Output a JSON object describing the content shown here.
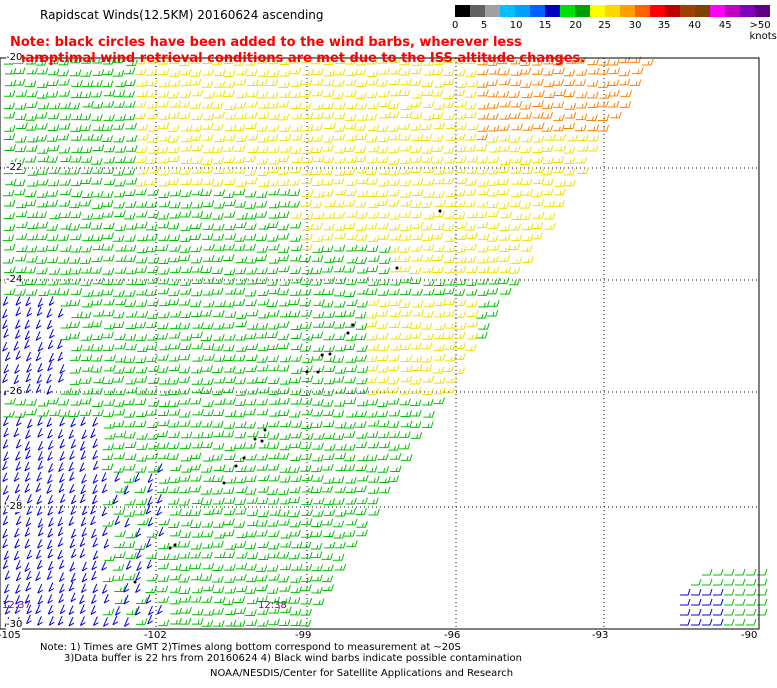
{
  "title": "Rapidscat Winds(12.5KM) 20160624 ascending",
  "note_line1": "Note: black circles have been added to the wind barbs, wherever less than",
  "note_line2": "optimal wind retrieval conditions are met due to the ISS altitude changes.",
  "colorbar": {
    "colors": [
      "#000000",
      "#606060",
      "#a0a0a0",
      "#00c0ff",
      "#00a0ff",
      "#0060ff",
      "#0000c0",
      "#00e000",
      "#00a000",
      "#ffff00",
      "#ffd700",
      "#ffa000",
      "#ff6000",
      "#ff0000",
      "#c00000",
      "#a04000",
      "#804000",
      "#ff00ff",
      "#c000c0",
      "#8000c0",
      "#600080"
    ],
    "labels": [
      "0",
      "5",
      "10",
      "15",
      "20",
      "25",
      "30",
      "35",
      "40",
      "45",
      ">50 knots"
    ],
    "label_positions": [
      0,
      1.7,
      3.4,
      5.1,
      6.9,
      8.6,
      10.4,
      12.1,
      13.9,
      15.7,
      17.5
    ]
  },
  "lat_labels": [
    "-20",
    "-22",
    "-24",
    "-26",
    "-28",
    "-30"
  ],
  "lon_labels": [
    "-105",
    "-102",
    "-99",
    "-96",
    "-93",
    "-90"
  ],
  "time_labels": {
    "left": "12:37",
    "center": "12:38"
  },
  "footer_line1": "Note: 1) Times are GMT 2)Times along bottom correspond to measurement at ~20S",
  "footer_line2": "3)Data buffer is 22 hrs from 20160624 4) Black wind barbs indicate possible contamination",
  "footer_line3": "NOAA/NESDIS/Center for Satellite Applications and Research",
  "speed_colors": {
    "blue": "#0000e0",
    "green": "#00c000",
    "yellow": "#f0e000",
    "orange": "#ff8000"
  }
}
